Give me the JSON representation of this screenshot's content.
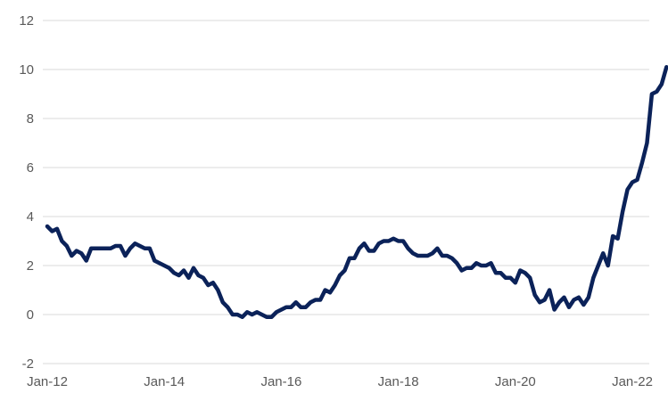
{
  "chart_data": {
    "type": "line",
    "title": "",
    "xlabel": "",
    "ylabel": "",
    "ylim": [
      -2,
      12
    ],
    "yticks": [
      -2,
      0,
      2,
      4,
      6,
      8,
      10,
      12
    ],
    "grid": true,
    "legend": "none",
    "x_start": "2012-01",
    "x_tick_labels": [
      "Jan-12",
      "Jan-14",
      "Jan-16",
      "Jan-18",
      "Jan-20",
      "Jan-22"
    ],
    "x_tick_months": [
      "2012-01",
      "2014-01",
      "2016-01",
      "2018-01",
      "2020-01",
      "2022-01"
    ],
    "series": [
      {
        "color": "#0b2259",
        "values": [
          3.6,
          3.4,
          3.5,
          3.0,
          2.8,
          2.4,
          2.6,
          2.5,
          2.2,
          2.7,
          2.7,
          2.7,
          2.7,
          2.7,
          2.8,
          2.8,
          2.4,
          2.7,
          2.9,
          2.8,
          2.7,
          2.7,
          2.2,
          2.1,
          2.0,
          1.9,
          1.7,
          1.6,
          1.8,
          1.5,
          1.9,
          1.6,
          1.5,
          1.2,
          1.3,
          1.0,
          0.5,
          0.3,
          0.0,
          0.0,
          -0.1,
          0.1,
          0.0,
          0.1,
          0.0,
          -0.1,
          -0.1,
          0.1,
          0.2,
          0.3,
          0.3,
          0.5,
          0.3,
          0.3,
          0.5,
          0.6,
          0.6,
          1.0,
          0.9,
          1.2,
          1.6,
          1.8,
          2.3,
          2.3,
          2.7,
          2.9,
          2.6,
          2.6,
          2.9,
          3.0,
          3.0,
          3.1,
          3.0,
          3.0,
          2.7,
          2.5,
          2.4,
          2.4,
          2.4,
          2.5,
          2.7,
          2.4,
          2.4,
          2.3,
          2.1,
          1.8,
          1.9,
          1.9,
          2.1,
          2.0,
          2.0,
          2.1,
          1.7,
          1.7,
          1.5,
          1.5,
          1.3,
          1.8,
          1.7,
          1.5,
          0.8,
          0.5,
          0.6,
          1.0,
          0.2,
          0.5,
          0.7,
          0.3,
          0.6,
          0.7,
          0.4,
          0.7,
          1.5,
          2.0,
          2.5,
          2.0,
          3.2,
          3.1,
          4.2,
          5.1,
          5.4,
          5.5,
          6.2,
          7.0,
          9.0,
          9.1,
          9.4,
          10.1
        ]
      }
    ]
  }
}
